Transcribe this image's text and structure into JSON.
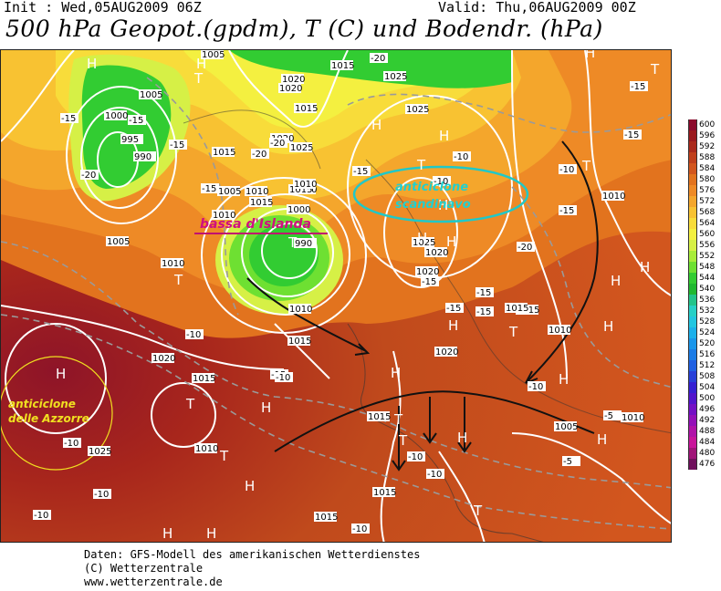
{
  "header": {
    "init": "Init : Wed,05AUG2009  06Z",
    "valid": "Valid: Thu,06AUG2009  00Z",
    "title": "500 hPa Geopot.(gpdm), T (C) und Bodendr. (hPa)"
  },
  "annotations": {
    "low_label": "bassa d'Islanda",
    "scand_label_1": "anticiclone",
    "scand_label_2": "scandinavo",
    "azores_label_1": "anticiclone",
    "azores_label_2": "delle Azzorre"
  },
  "pressure_labels": [
    "1005",
    "1015",
    "1000",
    "995",
    "990",
    "1005",
    "1010",
    "1015",
    "1020",
    "1025",
    "1020",
    "1015",
    "1010",
    "1005",
    "1000",
    "990",
    "1015",
    "1010",
    "1005",
    "1015",
    "1025",
    "1020",
    "1025",
    "1010",
    "1025",
    "1020",
    "1020",
    "1015",
    "1010",
    "1010",
    "1005",
    "1010",
    "1015",
    "1025",
    "1010",
    "1020",
    "1015",
    "1010",
    "1015",
    "1015",
    "1020",
    "1015",
    "1010",
    "1015"
  ],
  "temp_labels": [
    "-20",
    "-20",
    "-15",
    "-15",
    "-20",
    "-15",
    "-15",
    "-20",
    "-15",
    "-10",
    "-10",
    "-10",
    "-15",
    "-15",
    "-15",
    "-20",
    "-15",
    "-15",
    "-15",
    "-15",
    "-15",
    "-10",
    "-10",
    "-10",
    "-10",
    "-10",
    "-10",
    "-5",
    "-5",
    "-10",
    "-10",
    "-10"
  ],
  "high_low_markers": [
    "H",
    "H",
    "T",
    "H",
    "H",
    "H",
    "H",
    "H",
    "T",
    "T",
    "T",
    "H",
    "T",
    "H",
    "H",
    "T",
    "T",
    "H",
    "H",
    "T",
    "H",
    "H",
    "H",
    "T",
    "H",
    "T",
    "H",
    "H",
    "H",
    "T",
    "H",
    "H",
    "T",
    "H"
  ],
  "legend": {
    "values": [
      "600",
      "596",
      "592",
      "588",
      "584",
      "580",
      "576",
      "572",
      "568",
      "564",
      "560",
      "556",
      "552",
      "548",
      "544",
      "540",
      "536",
      "532",
      "528",
      "524",
      "520",
      "516",
      "512",
      "508",
      "504",
      "500",
      "496",
      "492",
      "488",
      "484",
      "480",
      "476"
    ],
    "colors": [
      "#8b0a2c",
      "#9a1a1e",
      "#aa2a1c",
      "#c0401c",
      "#d2561e",
      "#e2731e",
      "#ee8a26",
      "#f4a62c",
      "#f8c232",
      "#f8dc3a",
      "#f4f040",
      "#d6f046",
      "#a8ec3a",
      "#6ee032",
      "#32cc32",
      "#20b830",
      "#22c48a",
      "#26d0c6",
      "#22c6e0",
      "#1cb0ea",
      "#1a96ea",
      "#1c7ce6",
      "#2060e2",
      "#2840d8",
      "#3620d2",
      "#5214cc",
      "#7410c4",
      "#9410b8",
      "#b012a8",
      "#c8149a",
      "#a01478",
      "#70105c"
    ]
  },
  "footer": {
    "line1": "Daten: GFS-Modell des amerikanischen Wetterdienstes",
    "line2": "(C) Wetterzentrale",
    "line3": "www.wetterzentrale.de"
  }
}
